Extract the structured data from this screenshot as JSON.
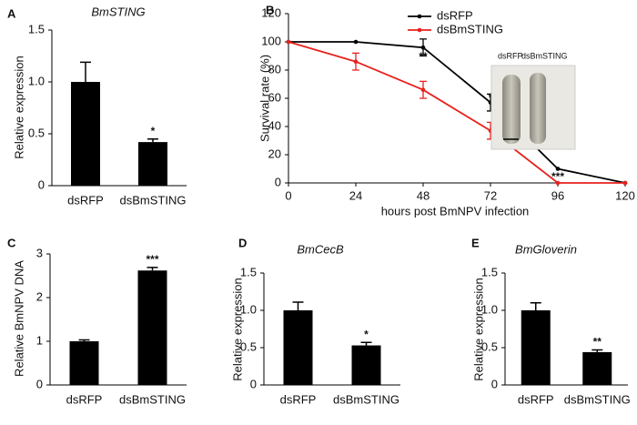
{
  "chart_data": [
    {
      "type": "bar",
      "panel_label": "A",
      "title": "BmSTING",
      "ylabel": "Relative expression",
      "categories": [
        "dsRFP",
        "dsBmSTING"
      ],
      "values": [
        1.0,
        0.42
      ],
      "errors": [
        0.19,
        0.03
      ],
      "color": "#000000",
      "annotations": [
        {
          "x": "dsBmSTING",
          "text": "*"
        }
      ],
      "ylim": [
        0,
        1.5
      ],
      "yticks": [
        0,
        0.5,
        {
          "value": 1,
          "label": "1.0"
        },
        1.5
      ]
    },
    {
      "type": "line",
      "panel_label": "B",
      "ylabel": "Survival rate (%)",
      "xlabel": "hours post BmNPV infection",
      "x": [
        0,
        24,
        48,
        72,
        96,
        120
      ],
      "series": [
        {
          "name": "dsRFP",
          "color": "#000000",
          "values": [
            100,
            100,
            96,
            57,
            10,
            0
          ],
          "errors": [
            0,
            0,
            6,
            6,
            0,
            0
          ]
        },
        {
          "name": "dsBmSTING",
          "color": "#e8201c",
          "values": [
            100,
            86,
            66,
            37,
            0,
            0
          ],
          "errors": [
            0,
            6,
            6,
            6,
            0,
            0
          ]
        }
      ],
      "annotations": [
        {
          "x": 48,
          "text": "**"
        },
        {
          "x": 72,
          "text": "*"
        },
        {
          "x": 96,
          "text": "***"
        }
      ],
      "inset_labels": [
        "dsRFP",
        "dsBmSTING"
      ],
      "legend_position": "top",
      "xlim": [
        0,
        120
      ],
      "xticks": [
        0,
        24,
        48,
        72,
        96,
        120
      ],
      "ylim": [
        0,
        120
      ],
      "yticks": [
        0,
        20,
        40,
        60,
        80,
        100,
        120
      ]
    },
    {
      "type": "bar",
      "panel_label": "C",
      "ylabel": "Relative  BmNPV DNA",
      "categories": [
        "dsRFP",
        "dsBmSTING"
      ],
      "values": [
        1.0,
        2.62
      ],
      "errors": [
        0.03,
        0.07
      ],
      "color": "#000000",
      "annotations": [
        {
          "x": "dsBmSTING",
          "text": "***"
        }
      ],
      "ylim": [
        0,
        3
      ],
      "yticks": [
        0,
        1,
        2,
        3
      ]
    },
    {
      "type": "bar",
      "panel_label": "D",
      "title": "BmCecB",
      "ylabel": "Relative expression",
      "categories": [
        "dsRFP",
        "dsBmSTING"
      ],
      "values": [
        1.0,
        0.53
      ],
      "errors": [
        0.11,
        0.04
      ],
      "color": "#000000",
      "annotations": [
        {
          "x": "dsBmSTING",
          "text": "*"
        }
      ],
      "ylim": [
        0,
        1.5
      ],
      "yticks": [
        0,
        0.5,
        {
          "value": 1,
          "label": "1.0"
        },
        1.5
      ]
    },
    {
      "type": "bar",
      "panel_label": "E",
      "title": "BmGloverin",
      "ylabel": "Relative expression",
      "categories": [
        "dsRFP",
        "dsBmSTING"
      ],
      "values": [
        1.0,
        0.44
      ],
      "errors": [
        0.1,
        0.03
      ],
      "color": "#000000",
      "annotations": [
        {
          "x": "dsBmSTING",
          "text": "**"
        }
      ],
      "ylim": [
        0,
        1.5
      ],
      "yticks": [
        0,
        0.5,
        {
          "value": 1,
          "label": "1.0"
        },
        1.5
      ]
    }
  ]
}
